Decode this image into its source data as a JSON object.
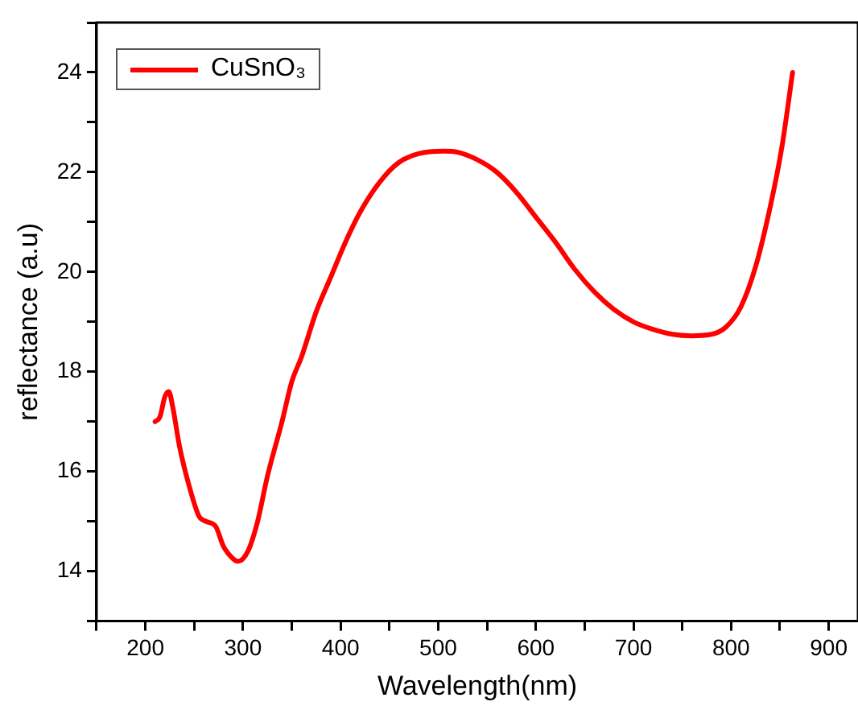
{
  "chart_data": {
    "type": "line",
    "xlabel": "Wavelength(nm)",
    "ylabel": "reflectance (a.u)",
    "xlim": [
      150,
      930
    ],
    "xticks": [
      {
        "value": 150,
        "label": null
      },
      200,
      {
        "value": 250,
        "label": null
      },
      300,
      {
        "value": 350,
        "label": null
      },
      400,
      {
        "value": 450,
        "label": null
      },
      500,
      {
        "value": 550,
        "label": null
      },
      600,
      {
        "value": 650,
        "label": null
      },
      700,
      {
        "value": 750,
        "label": null
      },
      800,
      {
        "value": 850,
        "label": null
      },
      900
    ],
    "ylim": [
      13,
      25
    ],
    "yticks": [
      {
        "value": 13,
        "label": null
      },
      14,
      {
        "value": 15,
        "label": null
      },
      16,
      {
        "value": 17,
        "label": null
      },
      18,
      {
        "value": 19,
        "label": null
      },
      20,
      {
        "value": 21,
        "label": null
      },
      22,
      {
        "value": 23,
        "label": null
      },
      24,
      {
        "value": 25,
        "label": null
      }
    ],
    "grid": false,
    "legend": "top left",
    "marker": "none",
    "line_style": "solid",
    "series": [
      {
        "name": "CuSnO₃",
        "color": "#ff0000",
        "x": [
          210,
          215,
          220,
          224,
          228,
          235,
          245,
          255,
          262,
          272,
          280,
          290,
          295,
          305,
          315,
          325,
          340,
          350,
          360,
          375,
          390,
          405,
          420,
          440,
          460,
          480,
          506,
          520,
          540,
          560,
          580,
          600,
          620,
          640,
          660,
          680,
          700,
          720,
          740,
          759,
          780,
          795,
          810,
          825,
          840,
          852,
          863
        ],
        "values": [
          17.0,
          17.1,
          17.5,
          17.6,
          17.3,
          16.5,
          15.7,
          15.1,
          15.0,
          14.9,
          14.5,
          14.25,
          14.2,
          14.4,
          15.0,
          15.9,
          17.0,
          17.8,
          18.3,
          19.2,
          19.9,
          20.6,
          21.2,
          21.8,
          22.2,
          22.37,
          22.42,
          22.4,
          22.25,
          22.0,
          21.6,
          21.1,
          20.6,
          20.05,
          19.6,
          19.25,
          19.0,
          18.85,
          18.75,
          18.72,
          18.75,
          18.9,
          19.3,
          20.1,
          21.3,
          22.5,
          24.0
        ]
      }
    ]
  }
}
